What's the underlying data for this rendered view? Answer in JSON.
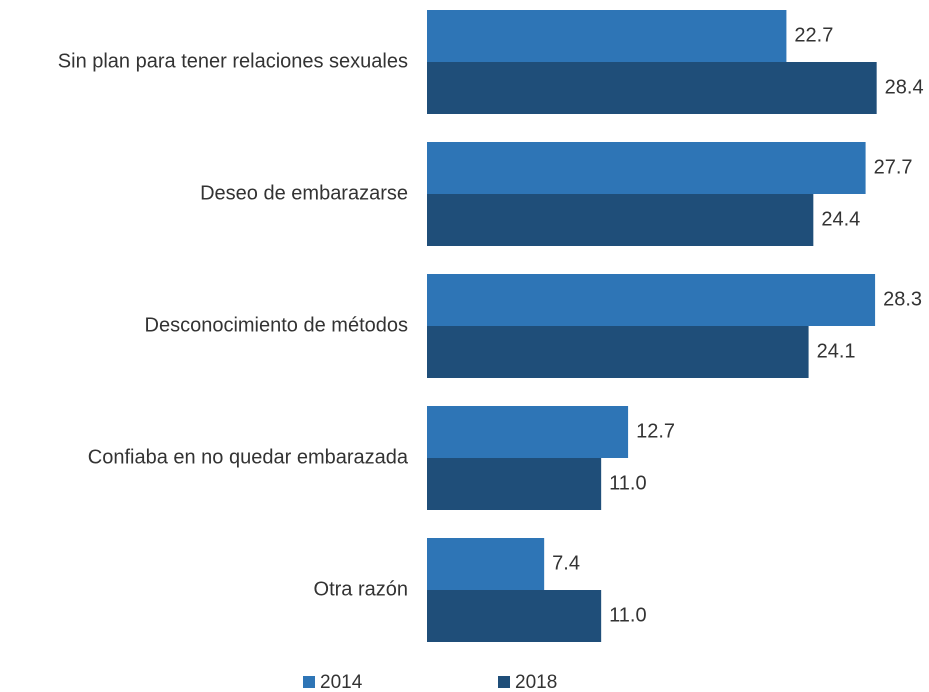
{
  "chart_data": {
    "type": "barh",
    "categories": [
      "Sin plan para tener relaciones sexuales",
      "Deseo de embarazarse",
      "Desconocimiento de métodos",
      "Confiaba en no quedar embarazada",
      "Otra razón"
    ],
    "series": [
      {
        "name": "2014",
        "color": "#2e75b6",
        "values": [
          22.7,
          27.7,
          28.3,
          12.7,
          7.4
        ],
        "value_labels": [
          "22.7",
          "27.7",
          "28.3",
          "12.7",
          "7.4"
        ]
      },
      {
        "name": "2018",
        "color": "#1f4e79",
        "values": [
          28.4,
          24.4,
          24.1,
          11.0,
          11.0
        ],
        "value_labels": [
          "28.4",
          "24.4",
          "24.1",
          "11.0",
          "11.0"
        ]
      }
    ],
    "xlim": [
      0,
      30
    ]
  }
}
